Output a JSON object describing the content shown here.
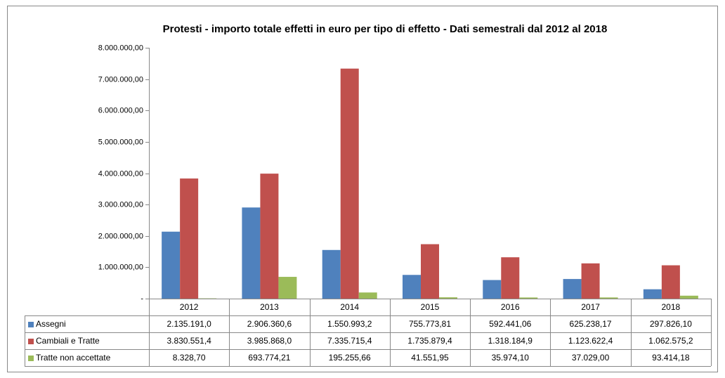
{
  "chart_data": {
    "type": "bar",
    "title": "Protesti - importo  totale effetti in euro per tipo di effetto - Dati semestrali dal 2012 al 2018",
    "categories": [
      "2012",
      "2013",
      "2014",
      "2015",
      "2016",
      "2017",
      "2018"
    ],
    "series": [
      {
        "name": "Assegni",
        "color": "#4f81bd",
        "values": [
          2135191.0,
          2906360.6,
          1550993.2,
          755773.81,
          592441.06,
          625238.17,
          297826.1
        ],
        "value_labels": [
          "2.135.191,0",
          "2.906.360,6",
          "1.550.993,2",
          "755.773,81",
          "592.441,06",
          "625.238,17",
          "297.826,10"
        ]
      },
      {
        "name": "Cambiali e Tratte",
        "color": "#c0504d",
        "values": [
          3830551.4,
          3985868.0,
          7335715.4,
          1735879.4,
          1318184.9,
          1123622.4,
          1062575.2
        ],
        "value_labels": [
          "3.830.551,4",
          "3.985.868,0",
          "7.335.715,4",
          "1.735.879,4",
          "1.318.184,9",
          "1.123.622,4",
          "1.062.575,2"
        ]
      },
      {
        "name": "Tratte non accettate",
        "color": "#9bbb59",
        "values": [
          8328.7,
          693774.21,
          195255.66,
          41551.95,
          35974.1,
          37029.0,
          93414.18
        ],
        "value_labels": [
          "8.328,70",
          "693.774,21",
          "195.255,66",
          "41.551,95",
          "35.974,10",
          "37.029,00",
          "93.414,18"
        ]
      }
    ],
    "ylim": [
      0,
      8000000
    ],
    "yticks": [
      {
        "value": 0,
        "label": "-"
      },
      {
        "value": 1000000,
        "label": "1.000.000,00"
      },
      {
        "value": 2000000,
        "label": "2.000.000,00"
      },
      {
        "value": 3000000,
        "label": "3.000.000,00"
      },
      {
        "value": 4000000,
        "label": "4.000.000,00"
      },
      {
        "value": 5000000,
        "label": "5.000.000,00"
      },
      {
        "value": 6000000,
        "label": "6.000.000,00"
      },
      {
        "value": 7000000,
        "label": "7.000.000,00"
      },
      {
        "value": 8000000,
        "label": "8.000.000,00"
      }
    ]
  }
}
